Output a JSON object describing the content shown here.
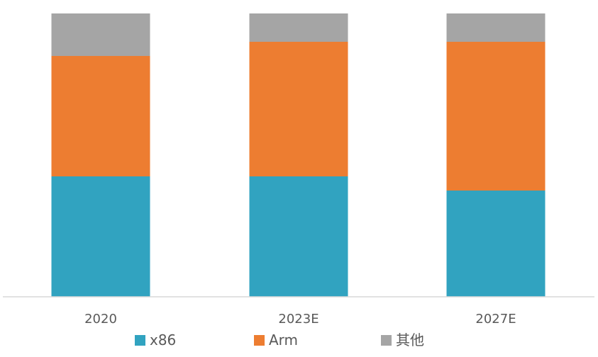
{
  "chart_data": {
    "type": "bar",
    "stacked": true,
    "categories": [
      "2020",
      "2023E",
      "2027E"
    ],
    "series": [
      {
        "name": "x86",
        "color": "#31A3C0",
        "values": [
          42.5,
          42.5,
          37.5
        ]
      },
      {
        "name": "Arm",
        "color": "#ED7D31",
        "values": [
          42.5,
          47.5,
          52.5
        ]
      },
      {
        "name": "其他",
        "color": "#A5A5A5",
        "values": [
          15,
          10,
          10
        ]
      }
    ],
    "ylim": [
      0,
      100
    ],
    "grid": false,
    "legend_position": "bottom"
  }
}
